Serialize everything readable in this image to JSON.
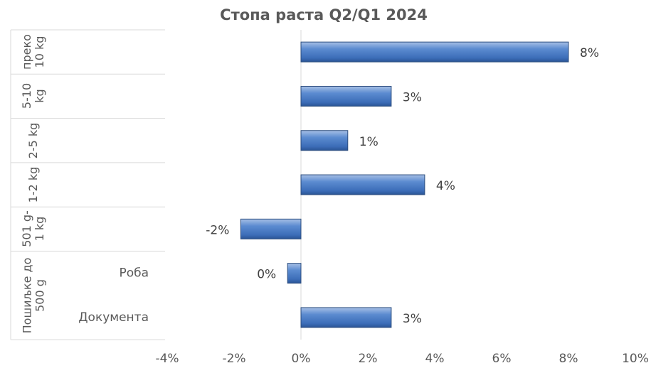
{
  "chart_data": {
    "type": "bar",
    "orientation": "horizontal",
    "title": "Стопа раста Q2/Q1 2024",
    "groups": [
      {
        "label": "преко 10 kg",
        "categories": [
          null
        ]
      },
      {
        "label": "5-10 kg",
        "categories": [
          null
        ]
      },
      {
        "label": "2-5 kg",
        "categories": [
          null
        ]
      },
      {
        "label": "1-2 kg",
        "categories": [
          null
        ]
      },
      {
        "label": "501 g-1 kg",
        "categories": [
          null
        ]
      },
      {
        "label": "Пошиљке до 500 g",
        "categories": [
          "Роба",
          "Документа"
        ]
      }
    ],
    "values": [
      8.0,
      2.7,
      1.4,
      3.7,
      -1.8,
      -0.4,
      2.7
    ],
    "value_labels": [
      "8%",
      "3%",
      "1%",
      "4%",
      "-2%",
      "0%",
      "3%"
    ],
    "color": "#4f81bd",
    "xlim": [
      -4,
      10
    ],
    "xticks": [
      {
        "value": -4,
        "label": "-4%"
      },
      {
        "value": -2,
        "label": "-2%"
      },
      {
        "value": 0,
        "label": "0%"
      },
      {
        "value": 2,
        "label": "2%"
      },
      {
        "value": 4,
        "label": "4%"
      },
      {
        "value": 6,
        "label": "6%"
      },
      {
        "value": 8,
        "label": "8%"
      },
      {
        "value": 10,
        "label": "10%"
      }
    ],
    "grid": false
  }
}
